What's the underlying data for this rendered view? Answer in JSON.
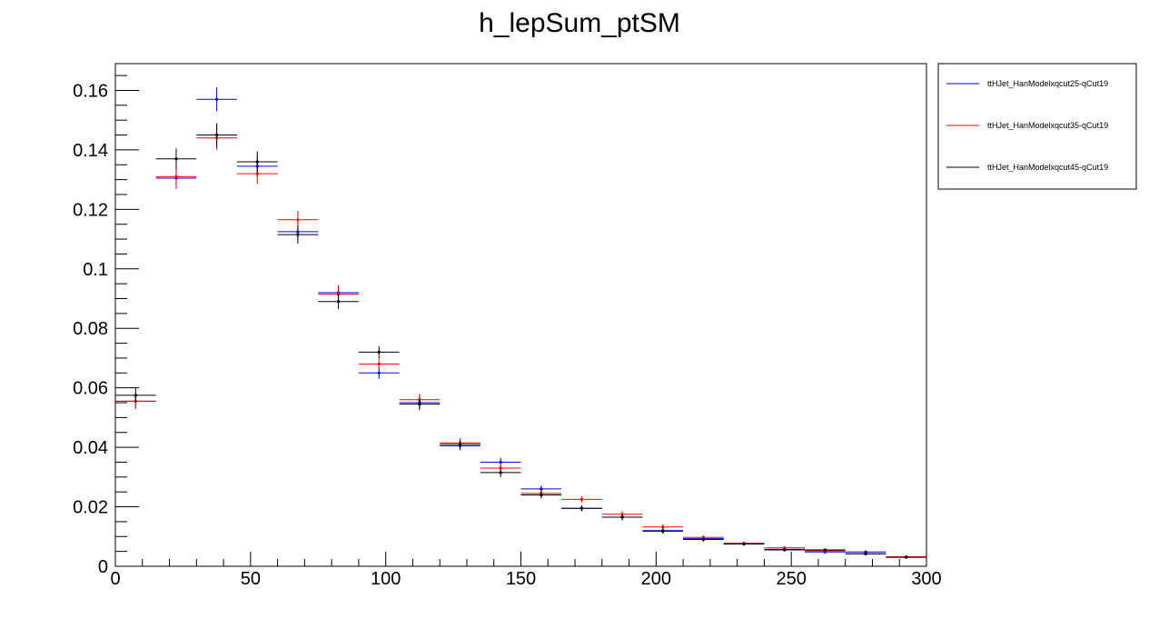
{
  "chart_data": {
    "type": "scatter",
    "title": "h_lepSum_ptSM",
    "xlabel": "",
    "ylabel": "",
    "xlim": [
      0,
      300
    ],
    "ylim": [
      0,
      0.169
    ],
    "grid": false,
    "legend_placement": "right",
    "x_ticks": [
      "0",
      "50",
      "100",
      "150",
      "200",
      "250",
      "300"
    ],
    "y_ticks": [
      "0",
      "0.02",
      "0.04",
      "0.06",
      "0.08",
      "0.1",
      "0.12",
      "0.14",
      "0.16"
    ],
    "bin_width": 15,
    "bin_centers": [
      7.5,
      22.5,
      37.5,
      52.5,
      67.5,
      82.5,
      97.5,
      112.5,
      127.5,
      142.5,
      157.5,
      172.5,
      187.5,
      202.5,
      217.5,
      232.5,
      247.5,
      262.5,
      277.5,
      292.5
    ],
    "series": [
      {
        "name": "ttHJet_HanModelxqcut25-qCut19",
        "color": "#0000ff",
        "values": [
          0.0555,
          0.1305,
          0.157,
          0.1345,
          0.1125,
          0.092,
          0.065,
          0.055,
          0.0405,
          0.035,
          0.026,
          0.0195,
          0.0165,
          0.012,
          0.0093,
          0.0077,
          0.0057,
          0.0048,
          0.0048,
          0.0032
        ],
        "errors": [
          0.0025,
          0.0035,
          0.004,
          0.0035,
          0.003,
          0.0025,
          0.002,
          0.002,
          0.0015,
          0.0015,
          0.0012,
          0.001,
          0.001,
          0.0008,
          0.0007,
          0.0006,
          0.0005,
          0.0005,
          0.0005,
          0.0004
        ]
      },
      {
        "name": "ttHJet_HanModelxqcut35-qCut19",
        "color": "#ff0000",
        "values": [
          0.0555,
          0.131,
          0.144,
          0.132,
          0.1165,
          0.0915,
          0.068,
          0.056,
          0.0415,
          0.033,
          0.0245,
          0.0225,
          0.0175,
          0.0132,
          0.0097,
          0.0077,
          0.0062,
          0.0052,
          0.0042,
          0.0032
        ],
        "errors": [
          0.0025,
          0.0035,
          0.004,
          0.0035,
          0.003,
          0.0025,
          0.002,
          0.002,
          0.0015,
          0.0015,
          0.0012,
          0.001,
          0.001,
          0.0008,
          0.0007,
          0.0006,
          0.0005,
          0.0005,
          0.0005,
          0.0004
        ]
      },
      {
        "name": "ttHJet_HanModelxqcut45-qCut19",
        "color": "#000000",
        "values": [
          0.0575,
          0.137,
          0.145,
          0.136,
          0.1115,
          0.089,
          0.072,
          0.0545,
          0.041,
          0.0315,
          0.024,
          0.0195,
          0.0165,
          0.0118,
          0.009,
          0.0075,
          0.0055,
          0.0055,
          0.0042,
          0.003
        ],
        "errors": [
          0.0025,
          0.0035,
          0.004,
          0.0035,
          0.003,
          0.0025,
          0.002,
          0.002,
          0.0015,
          0.0015,
          0.0012,
          0.001,
          0.001,
          0.0008,
          0.0007,
          0.0006,
          0.0005,
          0.0005,
          0.0005,
          0.0004
        ]
      }
    ]
  }
}
